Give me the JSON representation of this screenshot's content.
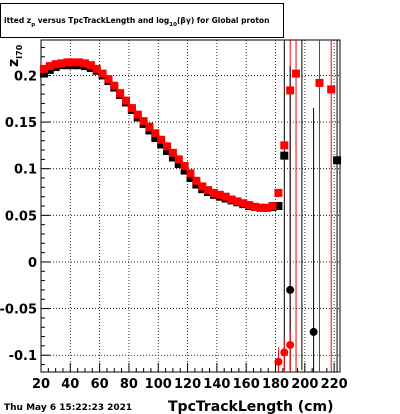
{
  "chart_data": {
    "type": "scatter",
    "title_parts": [
      "itted  z",
      "p",
      " versus TpcTrackLength and log",
      "10",
      "(βγ) for Global proton"
    ],
    "z_sub": "70",
    "xlabel": "TpcTrackLength (cm)",
    "ylabel": "z",
    "ylabel_sub": "I70",
    "timestamp": "Thu May  6 15:22:23 2021",
    "xlim": [
      20,
      224
    ],
    "ylim": [
      -0.118,
      0.238
    ],
    "x_ticks": [
      20,
      40,
      60,
      80,
      100,
      120,
      140,
      160,
      180,
      200,
      220
    ],
    "x_tick_labels": [
      "20",
      "40",
      "60",
      "80",
      "100",
      "120",
      "140",
      "160",
      "180",
      "200",
      "220"
    ],
    "y_ticks": [
      -0.1,
      -0.05,
      0,
      0.05,
      0.1,
      0.15,
      0.2
    ],
    "y_tick_labels": [
      "-0.1",
      "-0.05",
      "0",
      "0.05",
      "0.1",
      "0.15",
      "0.2"
    ],
    "grid": true,
    "colors": {
      "series_black": "#000000",
      "series_red": "#ff0000"
    },
    "series": [
      {
        "marker": "square",
        "color": "#000000",
        "points": [
          [
            22,
            0.202
          ],
          [
            26,
            0.206
          ],
          [
            30,
            0.209
          ],
          [
            34,
            0.211
          ],
          [
            38,
            0.211
          ],
          [
            42,
            0.211
          ],
          [
            46,
            0.211
          ],
          [
            50,
            0.21
          ],
          [
            54,
            0.208
          ],
          [
            58,
            0.205
          ],
          [
            62,
            0.2
          ],
          [
            66,
            0.194
          ],
          [
            70,
            0.187
          ],
          [
            74,
            0.179
          ],
          [
            78,
            0.171
          ],
          [
            82,
            0.163
          ],
          [
            86,
            0.155
          ],
          [
            90,
            0.148
          ],
          [
            94,
            0.141
          ],
          [
            98,
            0.133
          ],
          [
            102,
            0.126
          ],
          [
            106,
            0.119
          ],
          [
            110,
            0.112
          ],
          [
            114,
            0.105
          ],
          [
            118,
            0.098
          ],
          [
            122,
            0.09
          ],
          [
            126,
            0.083
          ],
          [
            130,
            0.078
          ],
          [
            134,
            0.075
          ],
          [
            138,
            0.072
          ],
          [
            142,
            0.07
          ],
          [
            146,
            0.068
          ],
          [
            150,
            0.066
          ],
          [
            154,
            0.064
          ],
          [
            158,
            0.062
          ],
          [
            162,
            0.06
          ],
          [
            166,
            0.059
          ],
          [
            170,
            0.058
          ],
          [
            174,
            0.058
          ],
          [
            178,
            0.059
          ],
          [
            182,
            0.06
          ],
          [
            186,
            0.114
          ]
        ]
      },
      {
        "marker": "square",
        "color": "#ff0000",
        "points": [
          [
            22,
            0.207
          ],
          [
            26,
            0.21
          ],
          [
            30,
            0.212
          ],
          [
            34,
            0.213
          ],
          [
            38,
            0.214
          ],
          [
            42,
            0.214
          ],
          [
            46,
            0.214
          ],
          [
            50,
            0.213
          ],
          [
            54,
            0.211
          ],
          [
            58,
            0.207
          ],
          [
            62,
            0.202
          ],
          [
            66,
            0.196
          ],
          [
            70,
            0.189
          ],
          [
            74,
            0.181
          ],
          [
            78,
            0.173
          ],
          [
            82,
            0.165
          ],
          [
            86,
            0.158
          ],
          [
            90,
            0.151
          ],
          [
            94,
            0.145
          ],
          [
            98,
            0.138
          ],
          [
            102,
            0.131
          ],
          [
            106,
            0.124
          ],
          [
            110,
            0.117
          ],
          [
            114,
            0.11
          ],
          [
            118,
            0.103
          ],
          [
            122,
            0.095
          ],
          [
            126,
            0.087
          ],
          [
            130,
            0.081
          ],
          [
            134,
            0.077
          ],
          [
            138,
            0.074
          ],
          [
            142,
            0.072
          ],
          [
            146,
            0.07
          ],
          [
            150,
            0.067
          ],
          [
            154,
            0.065
          ],
          [
            158,
            0.063
          ],
          [
            162,
            0.061
          ],
          [
            166,
            0.059
          ],
          [
            170,
            0.058
          ],
          [
            174,
            0.058
          ],
          [
            178,
            0.06
          ],
          [
            182,
            0.074
          ],
          [
            186,
            0.125
          ],
          [
            190,
            0.184
          ],
          [
            194,
            0.202
          ],
          [
            210,
            0.192
          ],
          [
            218,
            0.185
          ]
        ]
      },
      {
        "marker": "circle",
        "color": "#000000",
        "points": [
          [
            190,
            -0.03
          ],
          [
            206,
            -0.075
          ]
        ],
        "errors": [
          [
            0.24,
            0.085
          ],
          [
            0.24,
            0.05
          ]
        ]
      },
      {
        "marker": "circle",
        "color": "#ff0000",
        "points": [
          [
            182,
            -0.107
          ],
          [
            186,
            -0.097
          ],
          [
            190,
            -0.089
          ]
        ],
        "errors": [
          [
            0.015,
            0.015
          ],
          [
            0.015,
            0.03
          ],
          [
            0.015,
            0.03
          ]
        ]
      }
    ],
    "error_bars": [
      {
        "x": 186,
        "y": 0.114,
        "up": 0.124,
        "down": 0.23,
        "color": "#000000"
      },
      {
        "x": 198,
        "y": 0.2,
        "up": 0.04,
        "down": 0.316,
        "color": "#000000"
      },
      {
        "x": 222,
        "y": 0.109,
        "up": 0.129,
        "down": 0.227,
        "color": "#000000"
      },
      {
        "x": 190,
        "y": 0.184,
        "up": 0.054,
        "down": 0.302,
        "color": "#ff0000"
      },
      {
        "x": 194,
        "y": 0.202,
        "up": 0.036,
        "down": 0.32,
        "color": "#ff0000"
      },
      {
        "x": 210,
        "y": 0.192,
        "up": 0.046,
        "down": 0.31,
        "color": "#ff0000"
      },
      {
        "x": 218,
        "y": 0.185,
        "up": 0.053,
        "down": 0.303,
        "color": "#ff0000"
      }
    ],
    "extra_markers": [
      {
        "x": 222,
        "y": 0.109,
        "marker": "square",
        "color": "#000000"
      }
    ]
  }
}
